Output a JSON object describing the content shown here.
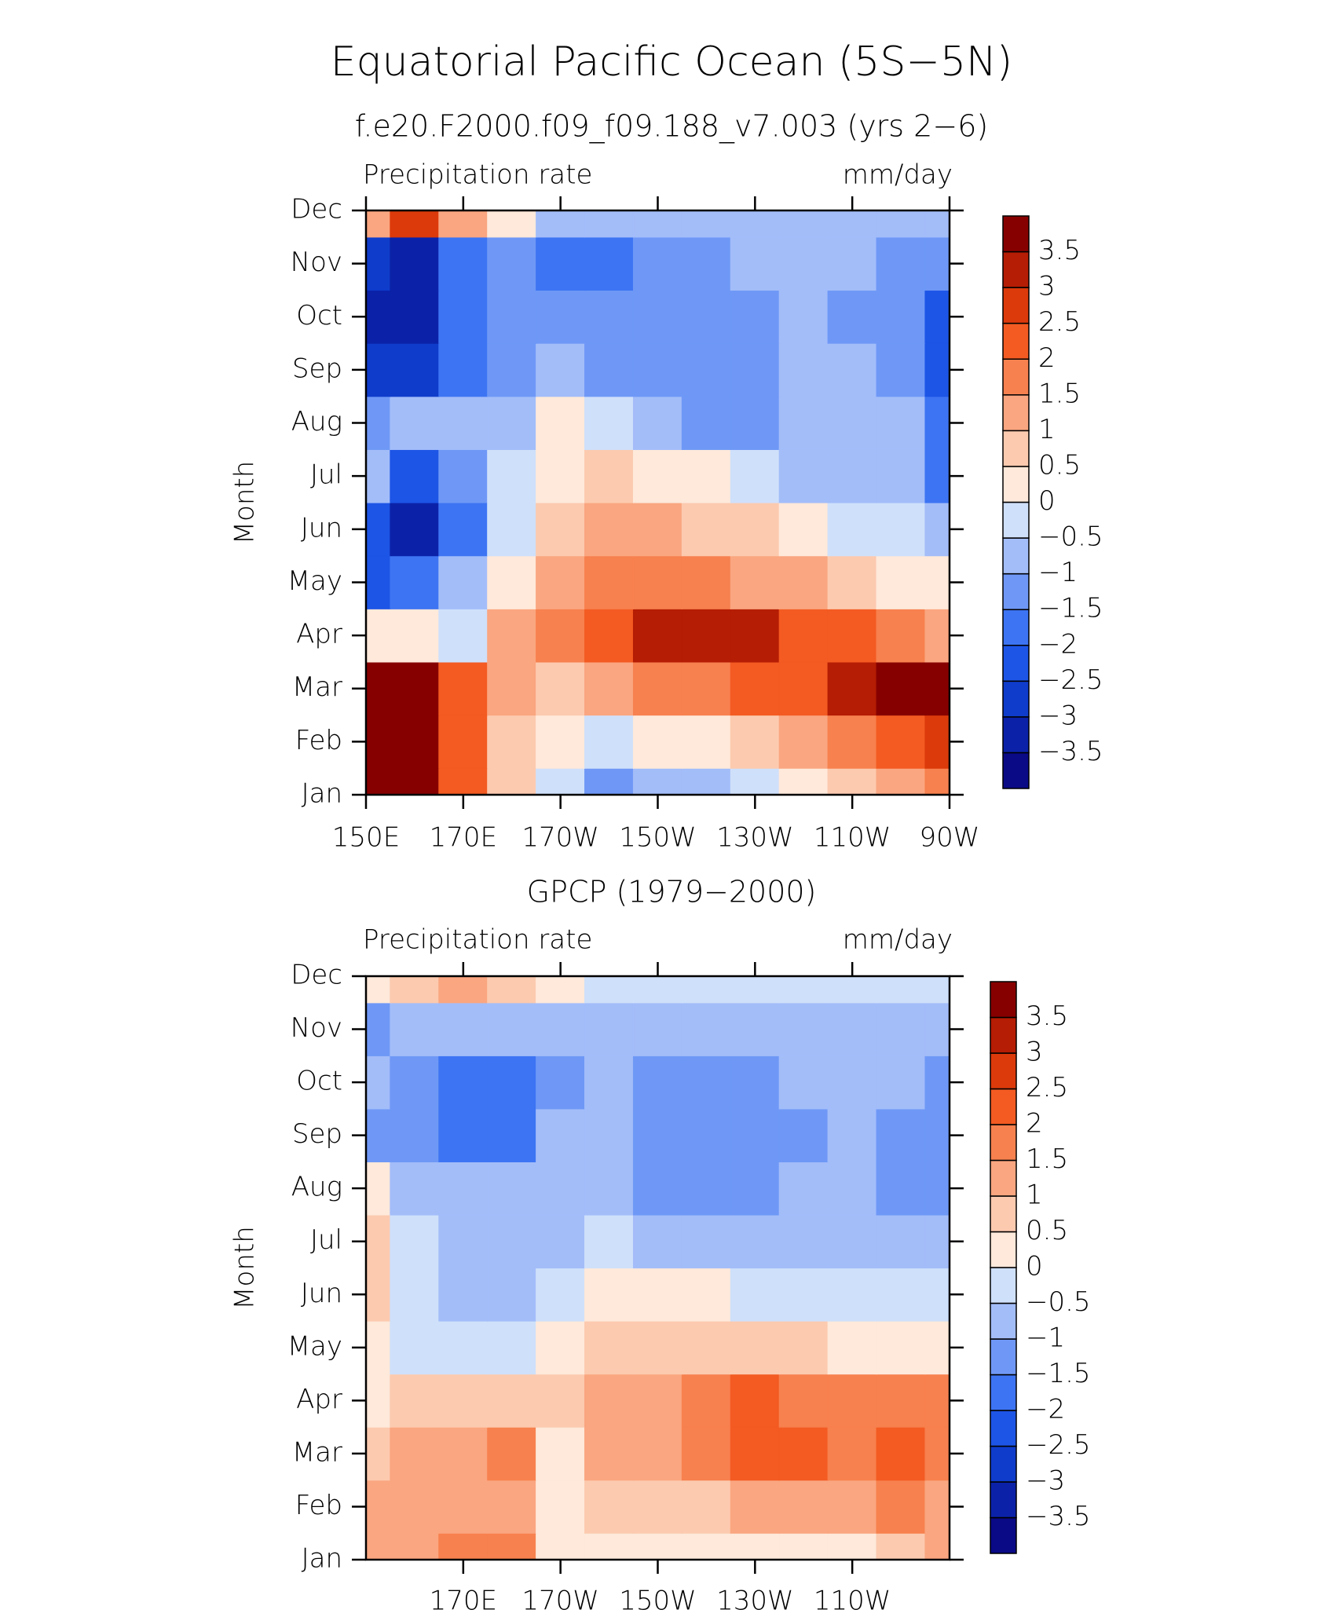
{
  "title": "Equatorial Pacific Ocean (5S−5N)",
  "chart_data": [
    {
      "type": "contour",
      "title": "f.e20.F2000.f09_f09.188_v7.003 (yrs 2−6)",
      "left_string": "Precipitation rate",
      "right_string": "mm/day",
      "ylabel": "Month",
      "categories": [
        "Jan",
        "Feb",
        "Mar",
        "Apr",
        "May",
        "Jun",
        "Jul",
        "Aug",
        "Sep",
        "Oct",
        "Nov",
        "Dec"
      ],
      "x": [
        150,
        160,
        170,
        180,
        190,
        200,
        210,
        220,
        230,
        240,
        250,
        260,
        270
      ],
      "xlim": [
        150,
        270
      ],
      "xticks": [
        {
          "value": 150,
          "label": "150E"
        },
        {
          "value": 170,
          "label": "170E"
        },
        {
          "value": 190,
          "label": "170W"
        },
        {
          "value": 210,
          "label": "150W"
        },
        {
          "value": 230,
          "label": "130W"
        },
        {
          "value": 250,
          "label": "110W"
        },
        {
          "value": 270,
          "label": "90W"
        }
      ],
      "values": [
        [
          4.0,
          4.0,
          2.0,
          0.8,
          -0.3,
          -1.2,
          -0.8,
          -0.6,
          -0.3,
          0.2,
          0.7,
          1.2,
          1.8
        ],
        [
          4.0,
          4.0,
          2.2,
          0.8,
          0.2,
          -0.3,
          0.3,
          0.4,
          0.7,
          1.2,
          1.6,
          2.2,
          2.8
        ],
        [
          4.0,
          3.8,
          2.3,
          1.0,
          0.8,
          1.2,
          1.6,
          1.8,
          2.0,
          2.3,
          3.0,
          3.8,
          4.0
        ],
        [
          0.3,
          0.0,
          -0.5,
          1.0,
          1.8,
          2.3,
          3.1,
          3.2,
          3.0,
          2.4,
          2.0,
          1.8,
          1.2
        ],
        [
          -2.5,
          -2.0,
          -1.0,
          0.2,
          1.0,
          1.8,
          1.8,
          1.6,
          1.4,
          1.0,
          0.6,
          0.4,
          0.2
        ],
        [
          -2.2,
          -3.2,
          -1.6,
          -0.4,
          0.6,
          1.3,
          1.0,
          0.8,
          0.5,
          0.2,
          -0.2,
          -0.5,
          -0.7
        ],
        [
          -0.6,
          -2.3,
          -1.3,
          -0.3,
          0.3,
          0.5,
          0.3,
          0.1,
          -0.2,
          -0.6,
          -0.8,
          -0.8,
          -1.8
        ],
        [
          -1.3,
          -1.0,
          -1.0,
          -0.8,
          0.2,
          -0.3,
          -0.6,
          -1.2,
          -1.2,
          -1.0,
          -0.8,
          -1.0,
          -2.0
        ],
        [
          -2.8,
          -2.7,
          -1.6,
          -1.2,
          -0.8,
          -1.2,
          -1.3,
          -1.3,
          -1.1,
          -0.9,
          -1.0,
          -1.3,
          -2.2
        ],
        [
          -3.2,
          -3.3,
          -2.0,
          -1.3,
          -1.2,
          -1.3,
          -1.4,
          -1.4,
          -1.2,
          -0.8,
          -1.1,
          -1.3,
          -2.1
        ],
        [
          -3.0,
          -3.2,
          -1.8,
          -1.4,
          -1.8,
          -2.0,
          -1.5,
          -1.2,
          -0.9,
          -0.8,
          -0.8,
          -1.2,
          -1.4
        ],
        [
          1.2,
          2.5,
          1.2,
          0.4,
          -0.8,
          -1.0,
          -1.0,
          -0.9,
          -0.8,
          -0.8,
          -0.8,
          -0.8,
          -0.9
        ]
      ],
      "levels": [
        {
          "value": -3.5,
          "label": "−3.5"
        },
        {
          "value": -3,
          "label": "−3"
        },
        {
          "value": -2.5,
          "label": "−2.5"
        },
        {
          "value": -2,
          "label": "−2"
        },
        {
          "value": -1.5,
          "label": "−1.5"
        },
        {
          "value": -1,
          "label": "−1"
        },
        {
          "value": -0.5,
          "label": "−0.5"
        },
        0,
        0.5,
        1,
        1.5,
        2,
        2.5,
        3,
        3.5
      ],
      "colors": [
        "#0a0a86",
        "#0b22a8",
        "#0f3ccb",
        "#1d55e6",
        "#3d74f3",
        "#6f98f6",
        "#a3bdf9",
        "#cfe0fa",
        "#fee9da",
        "#fccaaf",
        "#faa680",
        "#f7814f",
        "#f35b22",
        "#dc3a0b",
        "#b51d04",
        "#870000"
      ]
    },
    {
      "type": "contour",
      "title": "GPCP (1979−2000)",
      "left_string": "Precipitation rate",
      "right_string": "mm/day",
      "ylabel": "Month",
      "categories": [
        "Jan",
        "Feb",
        "Mar",
        "Apr",
        "May",
        "Jun",
        "Jul",
        "Aug",
        "Sep",
        "Oct",
        "Nov",
        "Dec"
      ],
      "x": [
        150,
        160,
        170,
        180,
        190,
        200,
        210,
        220,
        230,
        240,
        250,
        260,
        270
      ],
      "xlim": [
        150,
        270
      ],
      "xticks": [
        {
          "value": 170,
          "label": "170E"
        },
        {
          "value": 190,
          "label": "170W"
        },
        {
          "value": 210,
          "label": "150W"
        },
        {
          "value": 230,
          "label": "130W"
        },
        {
          "value": 250,
          "label": "110W"
        }
      ],
      "values": [
        [
          1.3,
          1.3,
          1.5,
          1.8,
          0.3,
          0.2,
          0.3,
          0.3,
          0.2,
          0.3,
          0.4,
          0.7,
          1.0
        ],
        [
          1.4,
          1.2,
          1.2,
          1.4,
          0.4,
          0.5,
          0.8,
          0.9,
          1.0,
          1.2,
          1.3,
          1.5,
          1.4
        ],
        [
          0.8,
          1.2,
          1.0,
          1.5,
          0.4,
          1.1,
          1.4,
          1.6,
          2.0,
          2.2,
          1.7,
          2.0,
          1.5
        ],
        [
          0.4,
          0.6,
          0.6,
          0.6,
          0.5,
          1.0,
          1.3,
          1.8,
          2.0,
          1.9,
          1.5,
          1.8,
          1.6
        ],
        [
          0.2,
          -0.3,
          -0.4,
          -0.3,
          0.3,
          0.6,
          0.8,
          0.7,
          0.6,
          0.5,
          0.3,
          0.2,
          0.1
        ],
        [
          0.5,
          -0.3,
          -0.7,
          -0.8,
          -0.3,
          0.1,
          0.1,
          0.0,
          -0.2,
          -0.4,
          -0.4,
          -0.4,
          -0.3
        ],
        [
          0.5,
          -0.4,
          -0.8,
          -0.9,
          -0.6,
          -0.4,
          -0.6,
          -0.6,
          -0.6,
          -0.7,
          -0.8,
          -0.7,
          -0.9
        ],
        [
          0.3,
          -0.6,
          -1.0,
          -1.0,
          -0.8,
          -0.8,
          -1.2,
          -1.2,
          -1.2,
          -1.0,
          -0.9,
          -1.1,
          -1.1
        ],
        [
          -1.2,
          -1.3,
          -1.8,
          -1.6,
          -1.0,
          -0.9,
          -1.3,
          -1.4,
          -1.3,
          -1.1,
          -0.9,
          -1.2,
          -1.3
        ],
        [
          -1.0,
          -1.1,
          -1.6,
          -1.6,
          -1.2,
          -0.9,
          -1.1,
          -1.2,
          -1.1,
          -0.8,
          -0.8,
          -1.0,
          -1.2
        ],
        [
          -1.2,
          -0.8,
          -0.8,
          -0.8,
          -0.7,
          -0.8,
          -0.8,
          -0.7,
          -0.6,
          -0.6,
          -0.6,
          -0.6,
          -0.7
        ],
        [
          0.3,
          0.6,
          1.0,
          0.5,
          0.2,
          -0.2,
          -0.4,
          -0.4,
          -0.3,
          -0.2,
          -0.2,
          -0.2,
          -0.3
        ]
      ],
      "levels": [
        {
          "value": -3.5,
          "label": "−3.5"
        },
        {
          "value": -3,
          "label": "−3"
        },
        {
          "value": -2.5,
          "label": "−2.5"
        },
        {
          "value": -2,
          "label": "−2"
        },
        {
          "value": -1.5,
          "label": "−1.5"
        },
        {
          "value": -1,
          "label": "−1"
        },
        {
          "value": -0.5,
          "label": "−0.5"
        },
        0,
        0.5,
        1,
        1.5,
        2,
        2.5,
        3,
        3.5
      ],
      "colors": [
        "#0a0a86",
        "#0b22a8",
        "#0f3ccb",
        "#1d55e6",
        "#3d74f3",
        "#6f98f6",
        "#a3bdf9",
        "#cfe0fa",
        "#fee9da",
        "#fccaaf",
        "#faa680",
        "#f7814f",
        "#f35b22",
        "#dc3a0b",
        "#b51d04",
        "#870000"
      ]
    }
  ]
}
